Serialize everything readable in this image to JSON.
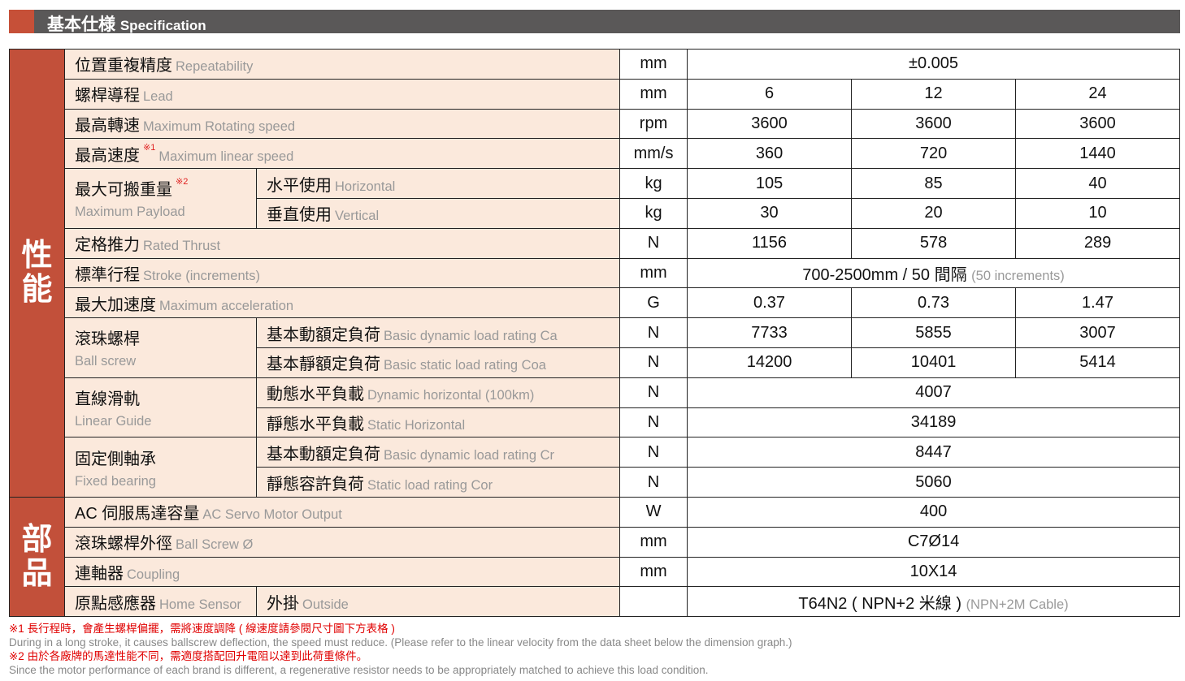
{
  "header": {
    "title_zh": "基本仕様",
    "title_en": "Specification"
  },
  "groups": [
    {
      "label": "性能",
      "rows": [
        {
          "zh": "位置重複精度",
          "en": "Repeatability",
          "unit": "mm",
          "value": "±0.005"
        },
        {
          "zh": "螺桿導程",
          "en": "Lead",
          "unit": "mm",
          "values": [
            "6",
            "12",
            "24"
          ]
        },
        {
          "zh": "最高轉速",
          "en": "Maximum Rotating speed",
          "unit": "rpm",
          "values": [
            "3600",
            "3600",
            "3600"
          ]
        },
        {
          "zh": "最高速度",
          "en": "Maximum linear speed",
          "note": "※1",
          "unit": "mm/s",
          "values": [
            "360",
            "720",
            "1440"
          ]
        },
        {
          "zh": "最大可搬重量",
          "en": "Maximum Payload",
          "note": "※2",
          "children": [
            {
              "zh": "水平使用",
              "en": "Horizontal",
              "unit": "kg",
              "values": [
                "105",
                "85",
                "40"
              ]
            },
            {
              "zh": "垂直使用",
              "en": "Vertical",
              "unit": "kg",
              "values": [
                "30",
                "20",
                "10"
              ]
            }
          ]
        },
        {
          "zh": "定格推力",
          "en": "Rated Thrust",
          "unit": "N",
          "values": [
            "1156",
            "578",
            "289"
          ]
        },
        {
          "zh": "標準行程",
          "en": "Stroke (increments)",
          "unit": "mm",
          "value": "700-2500mm / 50 間隔",
          "value_en": "(50 increments)"
        },
        {
          "zh": "最大加速度",
          "en": "Maximum acceleration",
          "unit": "G",
          "values": [
            "0.37",
            "0.73",
            "1.47"
          ]
        },
        {
          "zh": "滾珠螺桿",
          "en": "Ball screw",
          "children": [
            {
              "zh": "基本動額定負荷",
              "en": "Basic dynamic load rating Ca",
              "unit": "N",
              "values": [
                "7733",
                "5855",
                "3007"
              ]
            },
            {
              "zh": "基本靜額定負荷",
              "en": "Basic static load rating Coa",
              "unit": "N",
              "values": [
                "14200",
                "10401",
                "5414"
              ]
            }
          ]
        },
        {
          "zh": "直線滑軌",
          "en": "Linear Guide",
          "children": [
            {
              "zh": "動態水平負載",
              "en": "Dynamic horizontal (100km)",
              "unit": "N",
              "value": "4007"
            },
            {
              "zh": "靜態水平負載",
              "en": "Static Horizontal",
              "unit": "N",
              "value": "34189"
            }
          ]
        },
        {
          "zh": "固定側軸承",
          "en": "Fixed bearing",
          "children": [
            {
              "zh": "基本動額定負荷",
              "en": "Basic dynamic load rating Cr",
              "unit": "N",
              "value": "8447"
            },
            {
              "zh": "靜態容許負荷",
              "en": "Static load rating Cor",
              "unit": "N",
              "value": "5060"
            }
          ]
        }
      ]
    },
    {
      "label": "部品",
      "rows": [
        {
          "zh": "AC 伺服馬達容量",
          "en": "AC Servo Motor Output",
          "unit": "W",
          "value": "400"
        },
        {
          "zh": "滾珠螺桿外徑",
          "en": "Ball Screw Ø",
          "unit": "mm",
          "value": "C7Ø14"
        },
        {
          "zh": "連軸器",
          "en": "Coupling",
          "unit": "mm",
          "value": "10X14"
        },
        {
          "zh": "原點感應器",
          "en": "Home Sensor",
          "sub_zh": "外掛",
          "sub_en": "Outside",
          "unit": "",
          "value": "T64N2 ( NPN+2 米線 )",
          "value_en": "(NPN+2M Cable)"
        }
      ]
    }
  ],
  "notes": [
    {
      "text": "※1 長行程時，會產生螺桿偏擺，需將速度調降 ( 線速度請參閱尺寸圖下方表格 )",
      "color": "red"
    },
    {
      "text": "During in a long stroke, it causes ballscrew deflection, the speed must reduce. (Please refer to the linear velocity from the data sheet below the dimension graph.)",
      "color": "gray"
    },
    {
      "text": "※2 由於各廠牌的馬達性能不同，需適度搭配回升電阻以達到此荷重條件。",
      "color": "red"
    },
    {
      "text": "Since the motor performance of each brand is different, a regenerative resistor needs to be appropriately matched to achieve this load condition.",
      "color": "gray"
    }
  ]
}
